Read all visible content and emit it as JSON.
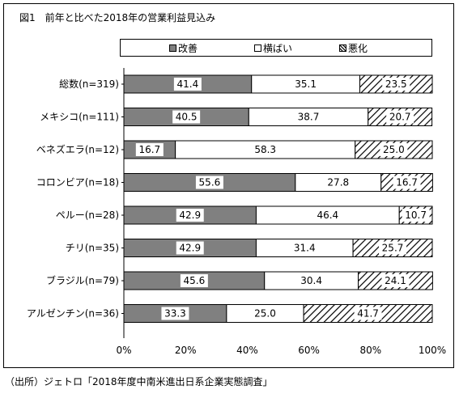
{
  "title": "図1　前年と比べた2018年の営業利益見込み",
  "source": "（出所）ジェトロ「2018年度中南米進出日系企業実態調査」",
  "colors": {
    "improve": "#808080",
    "same": "#ffffff",
    "worse_hatch": "#000000",
    "border": "#000000"
  },
  "chart_data": {
    "type": "bar",
    "orientation": "horizontal",
    "stacked": true,
    "percent": true,
    "categories": [
      "総数(n=319)",
      "メキシコ(n=111)",
      "ベネズエラ(n=12)",
      "コロンビア(n=18)",
      "ペルー(n=28)",
      "チリ(n=35)",
      "ブラジル(n=79)",
      "アルゼンチン(n=36)"
    ],
    "series": [
      {
        "name": "改善",
        "values": [
          41.4,
          40.5,
          16.7,
          55.6,
          42.9,
          42.9,
          45.6,
          33.3
        ]
      },
      {
        "name": "横ばい",
        "values": [
          35.1,
          38.7,
          58.3,
          27.8,
          46.4,
          31.4,
          30.4,
          25.0
        ]
      },
      {
        "name": "悪化",
        "values": [
          23.5,
          20.7,
          25.0,
          16.7,
          10.7,
          25.7,
          24.1,
          41.7
        ]
      }
    ],
    "xlim": [
      0,
      100
    ],
    "xticks": [
      "0%",
      "20%",
      "40%",
      "60%",
      "80%",
      "100%"
    ],
    "grid": false,
    "legend_position": "top"
  }
}
